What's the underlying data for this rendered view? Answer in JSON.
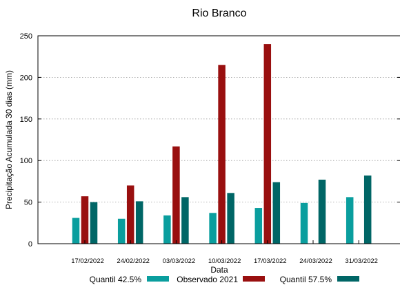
{
  "chart_data": {
    "type": "bar",
    "title": "Rio Branco",
    "xlabel": "Data",
    "ylabel": "Precipitação Acumulada 30 dias (mm)",
    "ylim": [
      0,
      250
    ],
    "yticks": [
      0,
      50,
      100,
      150,
      200,
      250
    ],
    "grid": true,
    "legend_position": "bottom",
    "categories": [
      "17/02/2022",
      "24/02/2022",
      "03/03/2022",
      "10/03/2022",
      "17/03/2022",
      "24/03/2022",
      "31/03/2022"
    ],
    "series": [
      {
        "name": "Quantil 42.5%",
        "color": "#0a9e9e",
        "values": [
          31,
          30,
          34,
          37,
          43,
          49,
          56
        ]
      },
      {
        "name": "Observado 2021",
        "color": "#990f0f",
        "values": [
          57,
          70,
          117,
          215,
          240,
          null,
          null
        ]
      },
      {
        "name": "Quantil 57.5%",
        "color": "#006666",
        "values": [
          50,
          51,
          56,
          61,
          74,
          77,
          82
        ]
      }
    ]
  }
}
